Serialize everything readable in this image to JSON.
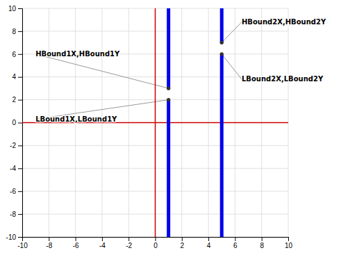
{
  "chart_data": {
    "type": "line",
    "xlim": [
      -10,
      10
    ],
    "ylim": [
      -10,
      10
    ],
    "xticks": [
      -10,
      -8,
      -6,
      -4,
      -2,
      0,
      2,
      4,
      6,
      8,
      10
    ],
    "yticks": [
      -10,
      -8,
      -6,
      -4,
      -2,
      0,
      2,
      4,
      6,
      8,
      10
    ],
    "grid": true,
    "series": [
      {
        "type": "line",
        "color": "#cc0000",
        "line_style": "solid",
        "x": [
          0,
          0
        ],
        "values": [
          -10,
          10
        ]
      },
      {
        "type": "line",
        "color": "#cc0000",
        "line_style": "solid",
        "x": [
          -10,
          10
        ],
        "values": [
          0,
          0
        ]
      },
      {
        "type": "line",
        "color": "#0000ee",
        "line_style": "thick",
        "x": [
          1,
          1
        ],
        "values": [
          3,
          10
        ]
      },
      {
        "type": "line",
        "color": "#0000ee",
        "line_style": "thick",
        "x": [
          1,
          1
        ],
        "values": [
          -10,
          2
        ]
      },
      {
        "type": "line",
        "color": "#0000ee",
        "line_style": "thick",
        "x": [
          5,
          5
        ],
        "values": [
          7,
          10
        ]
      },
      {
        "type": "line",
        "color": "#0000ee",
        "line_style": "thick",
        "x": [
          5,
          5
        ],
        "values": [
          -10,
          6
        ]
      },
      {
        "type": "scatter",
        "color": "#333333",
        "marker": "circle",
        "x": [
          1,
          1,
          5,
          5
        ],
        "values": [
          3,
          2,
          7,
          6
        ]
      }
    ],
    "annotations": [
      {
        "text": "HBound1X,HBound1Y",
        "x": 1,
        "y": 3,
        "text_x": -9,
        "text_y": 6
      },
      {
        "text": "LBound1X,LBound1Y",
        "x": 1,
        "y": 2,
        "text_x": -9,
        "text_y": 0.3
      },
      {
        "text": "HBound2X,HBound2Y",
        "x": 5,
        "y": 7,
        "text_x": 6.5,
        "text_y": 8.8
      },
      {
        "text": "LBound2X,LBound2Y",
        "x": 5,
        "y": 6,
        "text_x": 6.5,
        "text_y": 3.8
      }
    ]
  }
}
